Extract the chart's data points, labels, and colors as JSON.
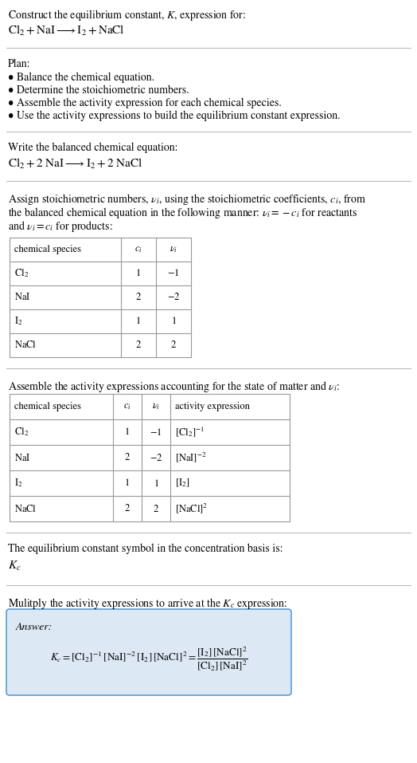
{
  "title_line1": "Construct the equilibrium constant, $K$, expression for:",
  "title_line2": "$\\mathrm{Cl_2 + NaI \\longrightarrow I_2 + NaCl}$",
  "plan_header": "Plan:",
  "plan_bullets": [
    "• Balance the chemical equation.",
    "• Determine the stoichiometric numbers.",
    "• Assemble the activity expression for each chemical species.",
    "• Use the activity expressions to build the equilibrium constant expression."
  ],
  "balanced_header": "Write the balanced chemical equation:",
  "balanced_eq": "$\\mathrm{Cl_2 + 2\\ NaI \\longrightarrow I_2 + 2\\ NaCl}$",
  "stoich_para": "Assign stoichiometric numbers, $\\nu_i$, using the stoichiometric coefficients, $c_i$, from\nthe balanced chemical equation in the following manner: $\\nu_i = -c_i$ for reactants\nand $\\nu_i = c_i$ for products:",
  "table1_cols": [
    "chemical species",
    "$c_i$",
    "$\\nu_i$"
  ],
  "table1_rows": [
    [
      "$\\mathrm{Cl_2}$",
      "1",
      "$-1$"
    ],
    [
      "$\\mathrm{NaI}$",
      "2",
      "$-2$"
    ],
    [
      "$\\mathrm{I_2}$",
      "1",
      "$1$"
    ],
    [
      "$\\mathrm{NaCl}$",
      "2",
      "$2$"
    ]
  ],
  "activity_header": "Assemble the activity expressions accounting for the state of matter and $\\nu_i$:",
  "table2_cols": [
    "chemical species",
    "$c_i$",
    "$\\nu_i$",
    "activity expression"
  ],
  "table2_rows": [
    [
      "$\\mathrm{Cl_2}$",
      "1",
      "$-1$",
      "$[\\mathrm{Cl_2}]^{-1}$"
    ],
    [
      "$\\mathrm{NaI}$",
      "2",
      "$-2$",
      "$[\\mathrm{NaI}]^{-2}$"
    ],
    [
      "$\\mathrm{I_2}$",
      "1",
      "$1$",
      "$[\\mathrm{I_2}]$"
    ],
    [
      "$\\mathrm{NaCl}$",
      "2",
      "$2$",
      "$[\\mathrm{NaCl}]^2$"
    ]
  ],
  "kc_text": "The equilibrium constant symbol in the concentration basis is:",
  "kc_symbol": "$K_c$",
  "multiply_text": "Mulitply the activity expressions to arrive at the $K_c$ expression:",
  "answer_label": "Answer:",
  "answer_eq": "$K_c = [\\mathrm{Cl_2}]^{-1}\\,[\\mathrm{NaI}]^{-2}\\,[\\mathrm{I_2}]\\,[\\mathrm{NaCl}]^2 = \\dfrac{[\\mathrm{I_2}]\\,[\\mathrm{NaCl}]^2}{[\\mathrm{Cl_2}]\\,[\\mathrm{NaI}]^2}$",
  "answer_box_fill": "#dce9f5",
  "answer_box_edge": "#5b9bd5",
  "bg_color": "#ffffff",
  "line_color": "#bbbbbb",
  "table_line_color": "#999999",
  "text_color": "#000000"
}
